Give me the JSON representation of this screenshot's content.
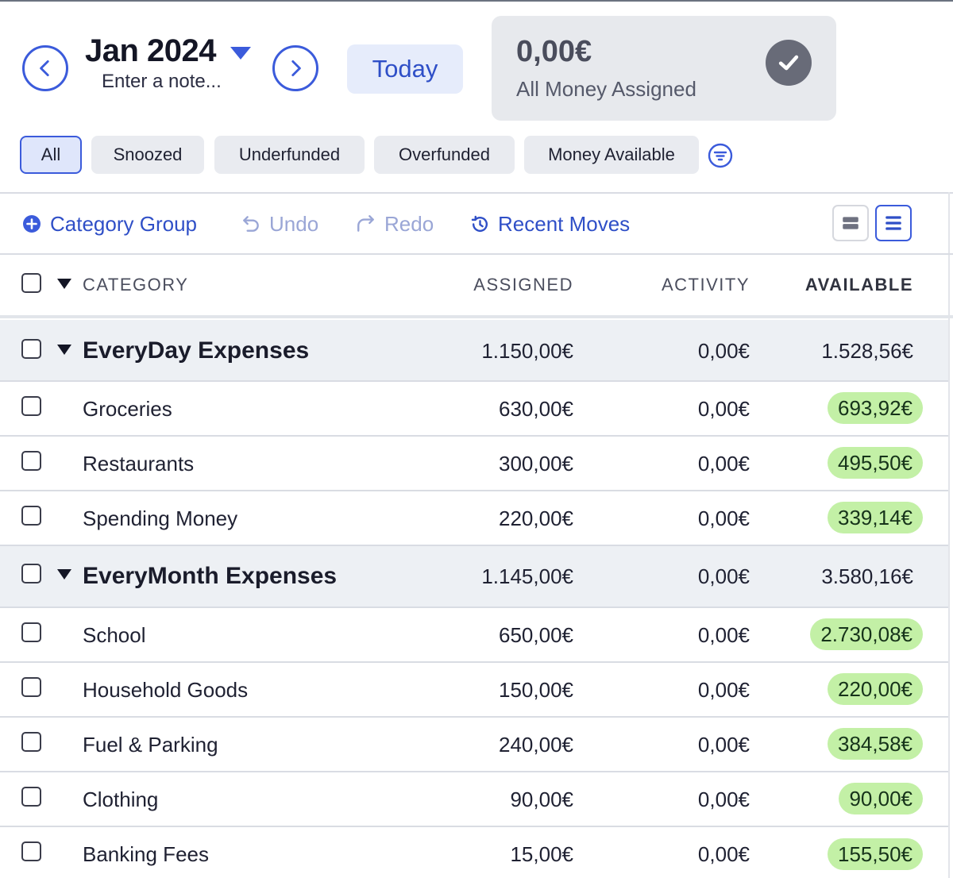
{
  "header": {
    "month": "Jan 2024",
    "note_placeholder": "Enter a note...",
    "today_label": "Today",
    "assigned_amount": "0,00€",
    "assigned_label": "All Money Assigned"
  },
  "filters": [
    "All",
    "Snoozed",
    "Underfunded",
    "Overfunded",
    "Money Available"
  ],
  "toolbar": {
    "category_group": "Category Group",
    "undo": "Undo",
    "redo": "Redo",
    "recent_moves": "Recent Moves"
  },
  "columns": {
    "category": "CATEGORY",
    "assigned": "ASSIGNED",
    "activity": "ACTIVITY",
    "available": "AVAILABLE"
  },
  "groups": [
    {
      "name": "EveryDay Expenses",
      "assigned": "1.150,00€",
      "activity": "0,00€",
      "available": "1.528,56€",
      "items": [
        {
          "name": "Groceries",
          "assigned": "630,00€",
          "activity": "0,00€",
          "available": "693,92€"
        },
        {
          "name": "Restaurants",
          "assigned": "300,00€",
          "activity": "0,00€",
          "available": "495,50€"
        },
        {
          "name": "Spending Money",
          "assigned": "220,00€",
          "activity": "0,00€",
          "available": "339,14€"
        }
      ]
    },
    {
      "name": "EveryMonth Expenses",
      "assigned": "1.145,00€",
      "activity": "0,00€",
      "available": "3.580,16€",
      "items": [
        {
          "name": "School",
          "assigned": "650,00€",
          "activity": "0,00€",
          "available": "2.730,08€"
        },
        {
          "name": "Household Goods",
          "assigned": "150,00€",
          "activity": "0,00€",
          "available": "220,00€"
        },
        {
          "name": "Fuel & Parking",
          "assigned": "240,00€",
          "activity": "0,00€",
          "available": "384,58€"
        },
        {
          "name": "Clothing",
          "assigned": "90,00€",
          "activity": "0,00€",
          "available": "90,00€"
        },
        {
          "name": "Banking Fees",
          "assigned": "15,00€",
          "activity": "0,00€",
          "available": "155,50€"
        }
      ]
    }
  ],
  "colors": {
    "accent": "#3b5bdb",
    "available_pill": "#c3f0a6"
  }
}
